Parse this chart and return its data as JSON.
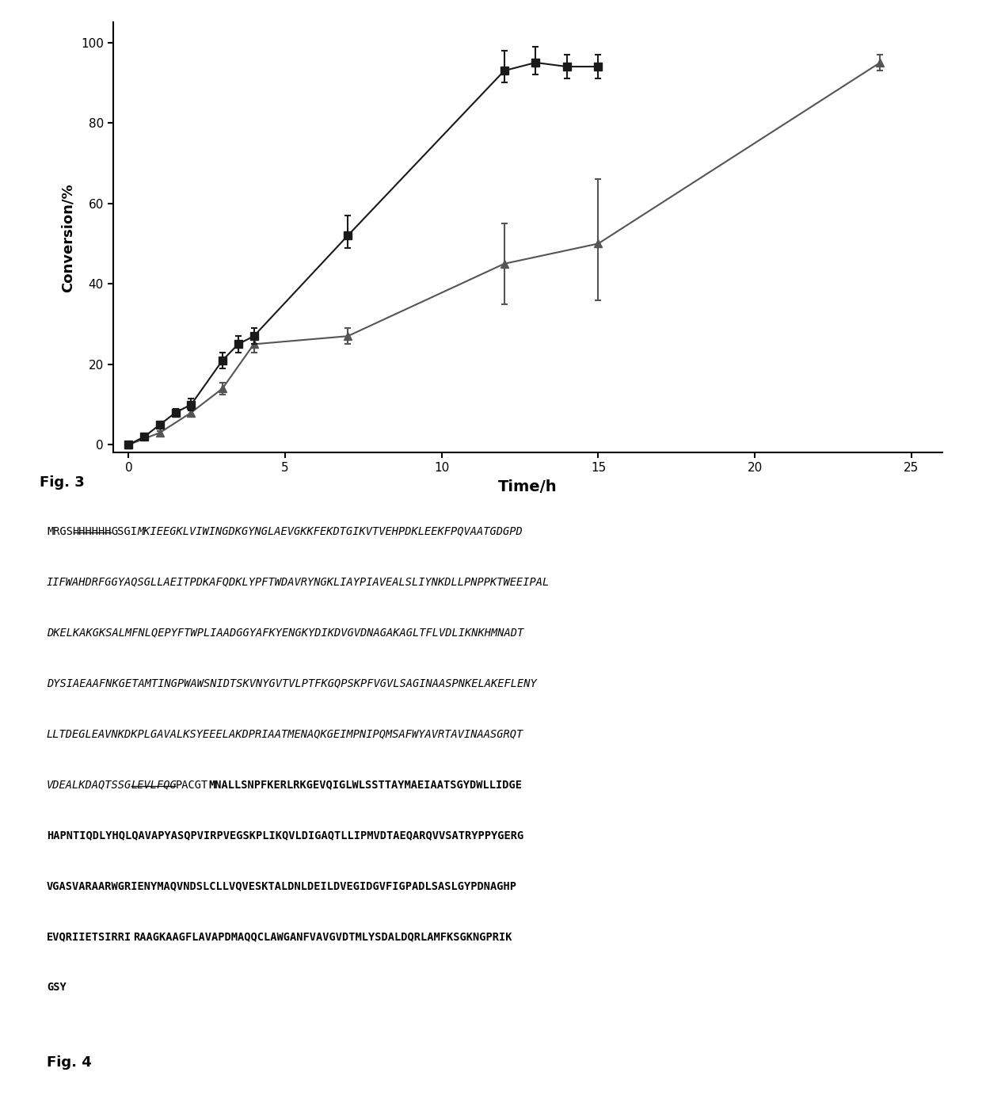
{
  "square_x": [
    0,
    0.5,
    1,
    1.5,
    2,
    3,
    3.5,
    4,
    7,
    12,
    13,
    14,
    15
  ],
  "square_y": [
    0,
    2,
    5,
    8,
    10,
    21,
    25,
    27,
    52,
    93,
    95,
    94,
    94
  ],
  "square_yerr_low": [
    0,
    0.5,
    0.8,
    1,
    1.5,
    2,
    2,
    2,
    3,
    3,
    3,
    3,
    3
  ],
  "square_yerr_high": [
    0,
    0.5,
    0.8,
    1,
    1.5,
    2,
    2,
    2,
    5,
    5,
    4,
    3,
    3
  ],
  "triangle_x": [
    0,
    1,
    2,
    3,
    4,
    7,
    12,
    15,
    24
  ],
  "triangle_y": [
    0,
    3,
    8,
    14,
    25,
    27,
    45,
    50,
    95
  ],
  "triangle_yerr_low": [
    0,
    0.5,
    1,
    1.5,
    2,
    2,
    10,
    14,
    2
  ],
  "triangle_yerr_high": [
    0,
    0.5,
    1,
    1.5,
    2,
    2,
    10,
    16,
    2
  ],
  "square_color": "#1a1a1a",
  "triangle_color": "#555555",
  "xlabel": "Time/h",
  "ylabel": "Conversion/%",
  "xlim": [
    -0.5,
    26
  ],
  "ylim": [
    -2,
    105
  ],
  "xticks": [
    0,
    5,
    10,
    15,
    20,
    25
  ],
  "yticks": [
    0,
    20,
    40,
    60,
    80,
    100
  ],
  "fig3_label": "Fig. 3",
  "fig4_label": "Fig. 4",
  "seq_fontsize": 9.8,
  "lines": [
    [
      [
        "MRGS",
        "normal",
        false
      ],
      [
        "HHHHHH",
        "normal",
        true
      ],
      [
        "GSGI",
        "normal",
        false
      ],
      [
        "MKIEEGKLVIWINGDKGYNGLAEVGKKFEKDTGIKVTVEHPDKLEEKFPQVAATGDGPD",
        "italic",
        false
      ]
    ],
    [
      [
        "IIFWAHDRFGGYAQSGLLAEITPDKAFQDKLYPFTWDAVRYNGKLIAYPIAVEALSLIYNKDLLPNPPKTWEEIPAL",
        "italic",
        false
      ]
    ],
    [
      [
        "DKELKAKGKSALMFNLQEPYFTWPLIAADGGYAFKYENGKYDIKDVGVDNAGAKAGLTFLVDLIKNKHMNADT",
        "italic",
        false
      ]
    ],
    [
      [
        "DYSIAEAAFNKGETAMTINGPWAWSNIDTSKVNYGVTVLPTFKGQPSKPFVGVLSAGINAASPNKELAKEFLENY",
        "italic",
        false
      ]
    ],
    [
      [
        "LLTDEGLEAVNKDKPLGAVALKSYEEELAKDPRIAATMENAQKGEIMPNIPQMSAFWYAVRTAVINAASGRQT",
        "italic",
        false
      ]
    ],
    [
      [
        "VDEALKDAQTSSG",
        "italic",
        false
      ],
      [
        "LEVLFQG",
        "italic",
        true
      ],
      [
        "PACGT",
        "normal",
        false
      ],
      [
        "MNALLSNPFKERLRKGEVQIGLWLSSTTAYMAEIAATSGYDWLLIDGE",
        "bold",
        false
      ]
    ],
    [
      [
        "HAPNTIQDLYHQLQAVAPYASQPVIRPVEGSKPLIKQVLDIGAQTLLIPMVDTAEQARQVVSATRYPPYGERG",
        "bold",
        false
      ]
    ],
    [
      [
        "VGASVARAARWGRIENYMAQVNDSLCLLVQVESKTALDNLDEILDVEGIDGVFIGPADLSASLGYPDNAGHP",
        "bold",
        false
      ]
    ],
    [
      [
        "EVQRIIETSIRRI",
        "bold",
        false
      ],
      [
        "RAAGKAAGFLAVAPDMAQQCLAWGANFVAVGVDTMLYSDALDQRLAMFKSGKNGPRIK",
        "bold",
        false
      ]
    ],
    [
      [
        "GSY",
        "bold",
        false
      ]
    ]
  ]
}
